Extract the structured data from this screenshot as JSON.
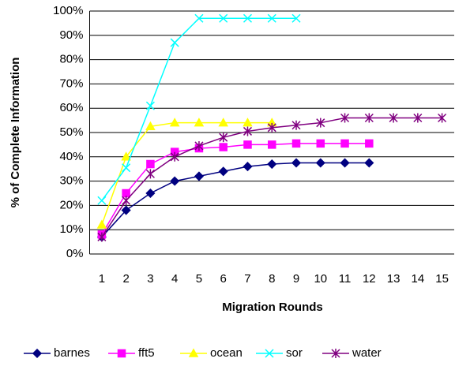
{
  "chart_data": {
    "type": "line",
    "y_label": "% of Complete Information",
    "x_label": "Migration Rounds",
    "categories": [
      1,
      2,
      3,
      4,
      5,
      6,
      7,
      8,
      9,
      10,
      11,
      12,
      13,
      14,
      15
    ],
    "ylim": [
      0,
      100
    ],
    "yticks": [
      {
        "value": 0,
        "label": "0%"
      },
      {
        "value": 10,
        "label": "10%"
      },
      {
        "value": 20,
        "label": "20%"
      },
      {
        "value": 30,
        "label": "30%"
      },
      {
        "value": 40,
        "label": "40%"
      },
      {
        "value": 50,
        "label": "50%"
      },
      {
        "value": 60,
        "label": "60%"
      },
      {
        "value": 70,
        "label": "70%"
      },
      {
        "value": 80,
        "label": "80%"
      },
      {
        "value": 90,
        "label": "90%"
      },
      {
        "value": 100,
        "label": "100%"
      }
    ],
    "grid": true,
    "legend": "bottom",
    "series": [
      {
        "name": "barnes",
        "color": "#000080",
        "marker": "diamond",
        "values": [
          7,
          18,
          25,
          30,
          32,
          34,
          36,
          37,
          37.5,
          37.5,
          37.5,
          37.5,
          null,
          null,
          null
        ]
      },
      {
        "name": "fft5",
        "color": "#FF00FF",
        "marker": "square",
        "values": [
          8,
          25,
          37,
          42,
          43.5,
          44,
          45,
          45,
          45.5,
          45.5,
          45.5,
          45.5,
          null,
          null,
          null
        ]
      },
      {
        "name": "ocean",
        "color": "#FFFF00",
        "marker": "triangle",
        "values": [
          12,
          40,
          52.5,
          54,
          54,
          54,
          54,
          54,
          null,
          null,
          null,
          null,
          null,
          null,
          null
        ]
      },
      {
        "name": "sor",
        "color": "#00FFFF",
        "marker": "x",
        "values": [
          22,
          35.5,
          61,
          87,
          97,
          97,
          97,
          97,
          97,
          null,
          null,
          null,
          null,
          null,
          null
        ]
      },
      {
        "name": "water",
        "color": "#800080",
        "marker": "star",
        "values": [
          7,
          22,
          33,
          40,
          44.5,
          48,
          50.5,
          52,
          53,
          54,
          56,
          56,
          56,
          56,
          56
        ]
      }
    ]
  }
}
